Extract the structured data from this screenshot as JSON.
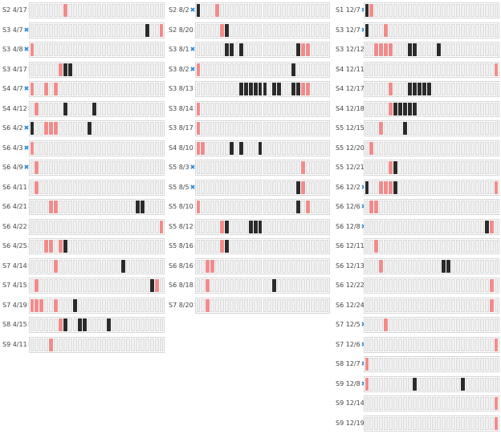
{
  "colors": {
    "empty": "#f1f1f1",
    "pink": "#f08c8c",
    "black": "#2b2b2b",
    "remove_icon": "#2b8bd6"
  },
  "cells_per_row": 28,
  "columns": [
    {
      "rows": [
        {
          "label": "S2 4/17",
          "pink": [
            7
          ],
          "black": []
        },
        {
          "label": "S3 4/7",
          "pink": [
            27
          ],
          "black": [
            24
          ]
        },
        {
          "label": "S3 4/8",
          "pink": [
            0
          ],
          "black": []
        },
        {
          "label": "S3 4/17",
          "pink": [
            6
          ],
          "black": [
            7,
            8
          ]
        },
        {
          "label": "S4 4/7",
          "pink": [
            0,
            3,
            5
          ],
          "black": []
        },
        {
          "label": "S4 4/12",
          "pink": [
            1
          ],
          "black": [
            7,
            13
          ]
        },
        {
          "label": "S6 4/2",
          "pink": [
            3,
            4,
            5
          ],
          "black": [
            0,
            12
          ]
        },
        {
          "label": "S6 4/3",
          "pink": [
            0
          ],
          "black": []
        },
        {
          "label": "S6 4/9",
          "pink": [
            1
          ],
          "black": []
        },
        {
          "label": "S6 4/11",
          "pink": [
            1
          ],
          "black": []
        },
        {
          "label": "S6 4/21",
          "pink": [
            4,
            5
          ],
          "black": [
            22,
            23
          ]
        },
        {
          "label": "S6 4/22",
          "pink": [
            27
          ],
          "black": []
        },
        {
          "label": "S6 4/25",
          "pink": [
            3,
            4,
            6
          ],
          "black": [
            7
          ]
        },
        {
          "label": "S7 4/14",
          "pink": [
            5
          ],
          "black": [
            19
          ]
        },
        {
          "label": "S7 4/15",
          "pink": [
            1,
            26
          ],
          "black": [
            25
          ]
        },
        {
          "label": "S7 4/19",
          "pink": [
            0,
            1,
            2,
            5
          ],
          "black": [
            9
          ]
        },
        {
          "label": "S8 4/15",
          "pink": [
            6
          ],
          "black": [
            7,
            10,
            11,
            16
          ]
        },
        {
          "label": "S9 4/11",
          "pink": [
            4
          ],
          "black": []
        }
      ]
    },
    {
      "rows": [
        {
          "label": "S2 8/2",
          "pink": [
            4
          ],
          "black": [
            0
          ]
        },
        {
          "label": "S2 8/20",
          "pink": [
            5
          ],
          "black": [
            6
          ]
        },
        {
          "label": "S3 8/1",
          "pink": [
            22,
            23
          ],
          "black": [
            6,
            7,
            9,
            21
          ]
        },
        {
          "label": "S3 8/2",
          "pink": [
            0
          ],
          "black": [
            20
          ]
        },
        {
          "label": "S3 8/13",
          "pink": [
            22,
            23
          ],
          "black": [
            9,
            10,
            11,
            12,
            13,
            14,
            16,
            17,
            20,
            21
          ]
        },
        {
          "label": "S3 8/14",
          "pink": [
            0
          ],
          "black": []
        },
        {
          "label": "S3 8/17",
          "pink": [
            0
          ],
          "black": []
        },
        {
          "label": "S4 8/10",
          "pink": [
            0,
            1
          ],
          "black": [
            7,
            9,
            13
          ]
        },
        {
          "label": "S5 8/3",
          "pink": [
            22
          ],
          "black": []
        },
        {
          "label": "S5 8/5",
          "pink": [
            22
          ],
          "black": [
            21
          ]
        },
        {
          "label": "S5 8/10",
          "pink": [
            0,
            23
          ],
          "black": [
            21
          ]
        },
        {
          "label": "S5 8/12",
          "pink": [
            5
          ],
          "black": [
            6,
            11,
            12,
            13
          ]
        },
        {
          "label": "S5 8/16",
          "pink": [
            5
          ],
          "black": [
            6
          ]
        },
        {
          "label": "S6 8/16",
          "pink": [
            2,
            3
          ],
          "black": []
        },
        {
          "label": "S6 8/18",
          "pink": [
            2
          ],
          "black": [
            16
          ]
        },
        {
          "label": "S7 8/20",
          "pink": [
            2
          ],
          "black": []
        }
      ]
    },
    {
      "rows": [
        {
          "label": "S1 12/7",
          "pink": [
            1
          ],
          "black": [
            0
          ]
        },
        {
          "label": "S3 12/7",
          "pink": [
            4
          ],
          "black": [
            0
          ]
        },
        {
          "label": "S3 12/12",
          "pink": [
            2,
            3,
            4,
            5
          ],
          "black": [
            9,
            10,
            15
          ]
        },
        {
          "label": "S4 12/11",
          "pink": [
            27
          ],
          "black": []
        },
        {
          "label": "S4 12/17",
          "pink": [
            5
          ],
          "black": [
            9,
            10,
            11,
            12,
            13
          ]
        },
        {
          "label": "S4 12/18",
          "pink": [
            5
          ],
          "black": [
            6,
            7,
            8,
            9,
            10
          ]
        },
        {
          "label": "S5 12/15",
          "pink": [
            3
          ],
          "black": [
            8
          ]
        },
        {
          "label": "S5 12/20",
          "pink": [
            1
          ],
          "black": []
        },
        {
          "label": "S5 12/21",
          "pink": [
            5
          ],
          "black": [
            6
          ]
        },
        {
          "label": "S6 12/2",
          "pink": [
            3,
            4,
            5,
            27
          ],
          "black": [
            0,
            6
          ]
        },
        {
          "label": "S6 12/6",
          "pink": [
            1,
            2
          ],
          "black": []
        },
        {
          "label": "S6 12/8",
          "pink": [
            26
          ],
          "black": [
            25
          ]
        },
        {
          "label": "S6 12/11",
          "pink": [
            2
          ],
          "black": []
        },
        {
          "label": "S6 12/13",
          "pink": [
            3
          ],
          "black": [
            16,
            17
          ]
        },
        {
          "label": "S6 12/22",
          "pink": [
            26
          ],
          "black": []
        },
        {
          "label": "S6 12/24",
          "pink": [
            26
          ],
          "black": []
        },
        {
          "label": "S7 12/5",
          "pink": [
            4
          ],
          "black": []
        },
        {
          "label": "S7 12/6",
          "pink": [
            27
          ],
          "black": []
        },
        {
          "label": "S8 12/7",
          "pink": [
            0
          ],
          "black": []
        },
        {
          "label": "S9 12/8",
          "pink": [
            0
          ],
          "black": [
            10,
            20
          ]
        },
        {
          "label": "S9 12/14",
          "pink": [
            27
          ],
          "black": []
        },
        {
          "label": "S9 12/19",
          "pink": [
            27
          ],
          "black": []
        }
      ]
    }
  ]
}
